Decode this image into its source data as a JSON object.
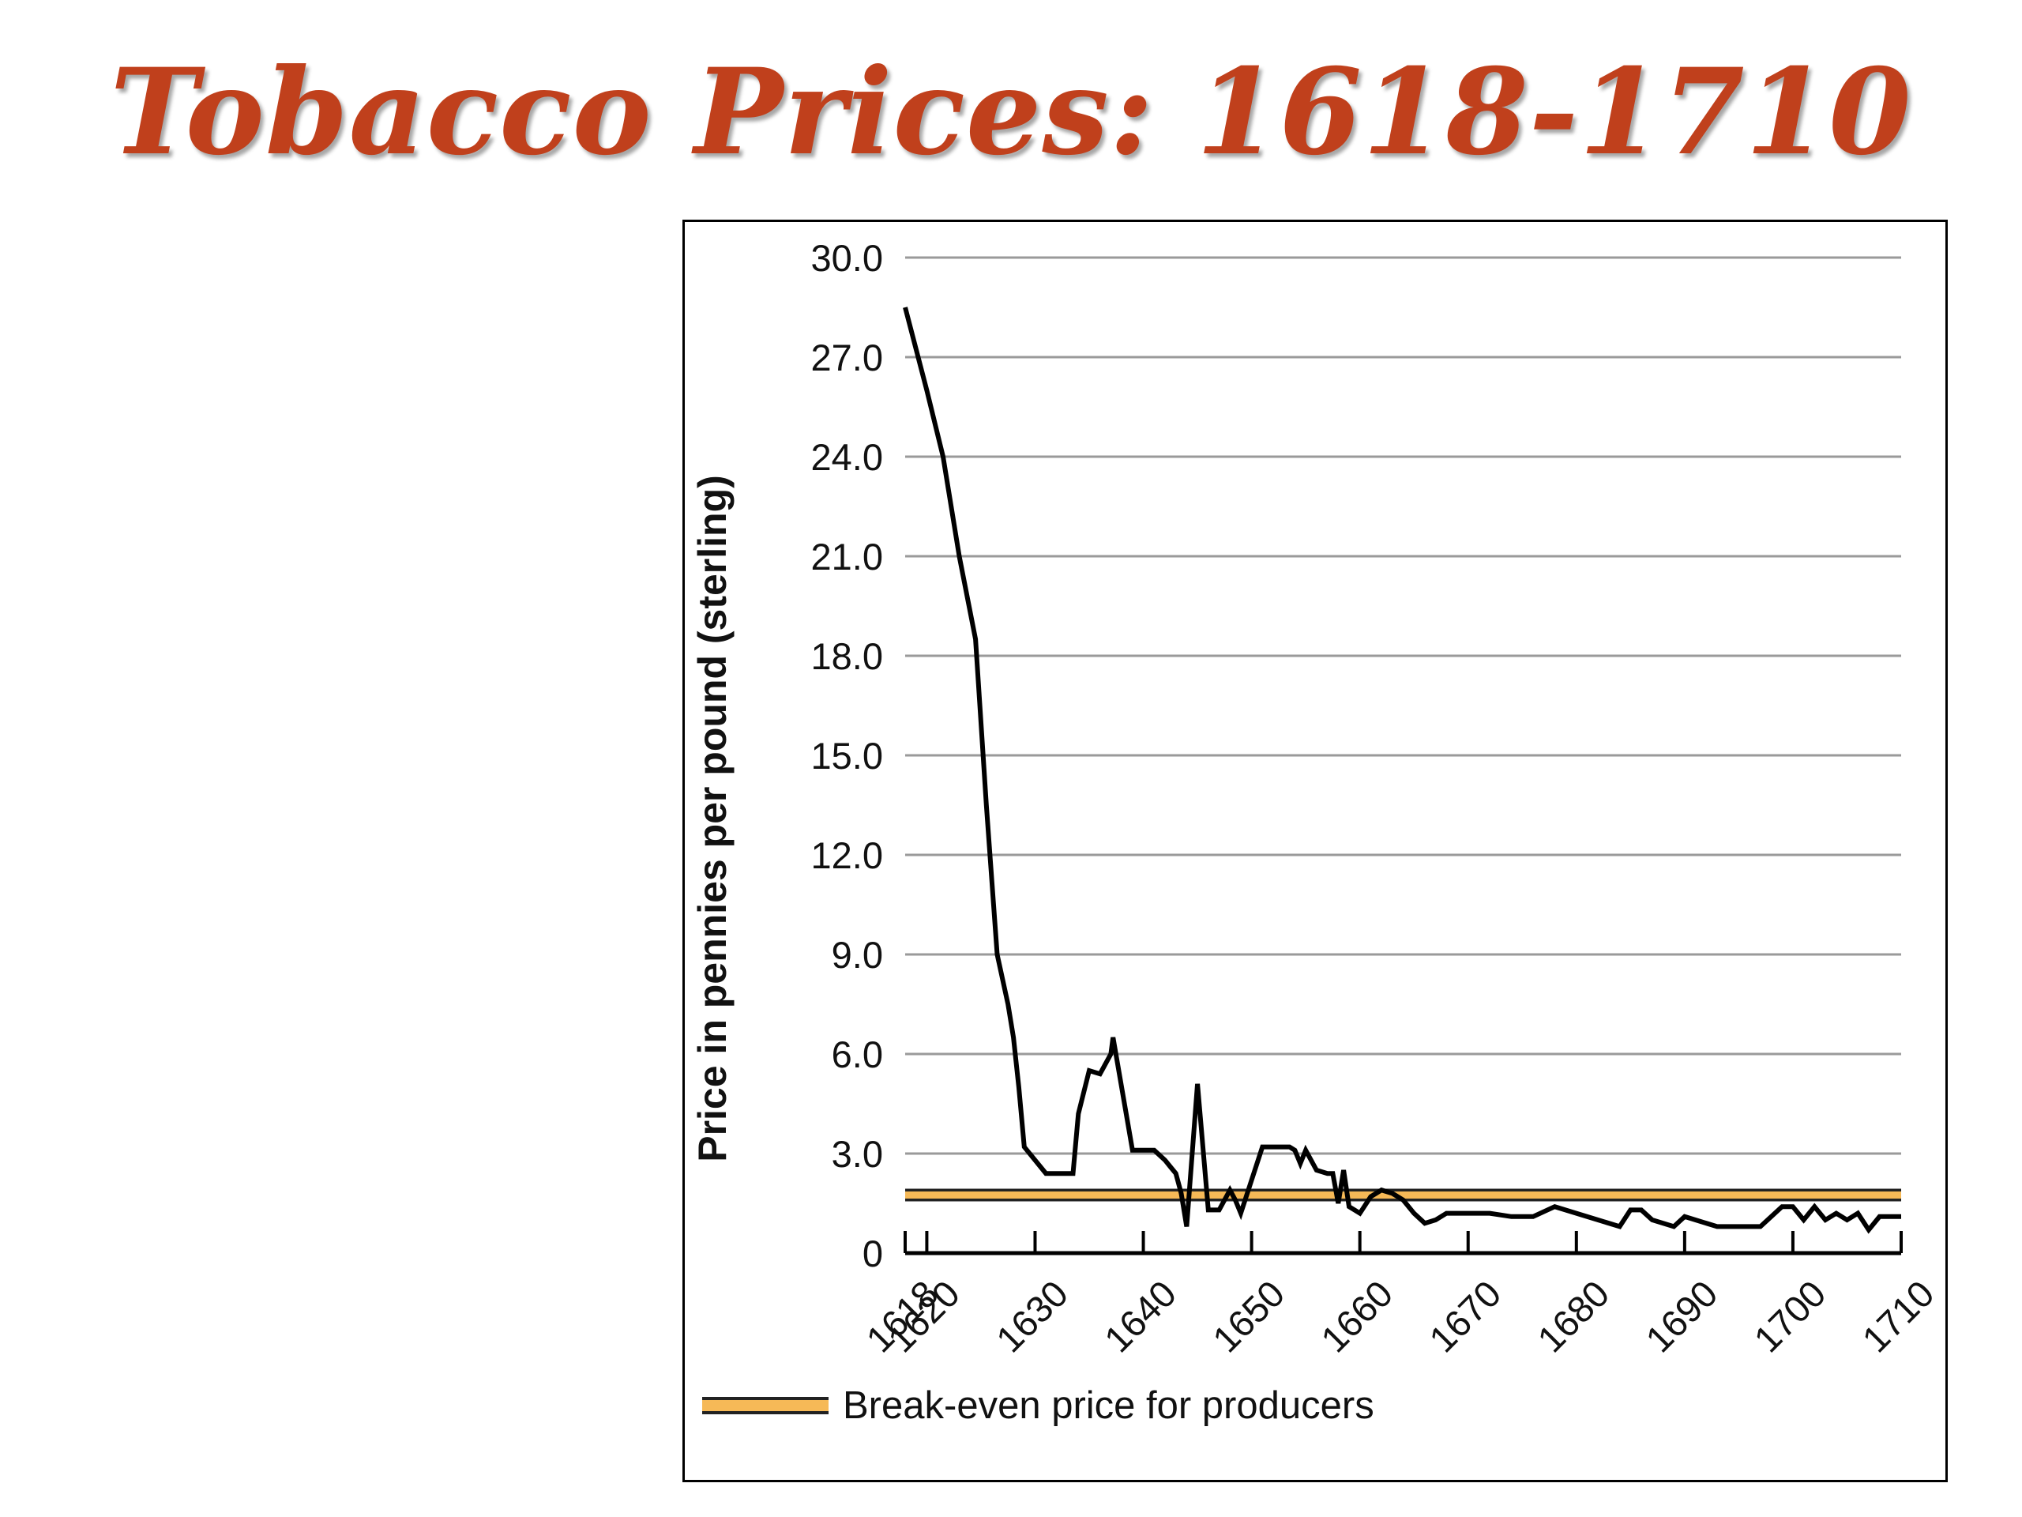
{
  "slide": {
    "title": "Tobacco Prices:  1618-1710"
  },
  "chart_data": {
    "type": "line",
    "title": "Tobacco Prices:  1618-1710",
    "ylabel": "Price in pennies per pound (sterling)",
    "xlabel": "",
    "xlim": [
      1618,
      1710
    ],
    "ylim": [
      0,
      30
    ],
    "y_ticks": [
      "0",
      "3.0",
      "6.0",
      "9.0",
      "12.0",
      "15.0",
      "18.0",
      "21.0",
      "24.0",
      "27.0",
      "30.0"
    ],
    "y_tick_values": [
      0,
      3,
      6,
      9,
      12,
      15,
      18,
      21,
      24,
      27,
      30
    ],
    "x_ticks": [
      "1618",
      "1620",
      "1630",
      "1640",
      "1650",
      "1660",
      "1670",
      "1680",
      "1690",
      "1700",
      "1710"
    ],
    "x_tick_values": [
      1618,
      1620,
      1630,
      1640,
      1650,
      1660,
      1670,
      1680,
      1690,
      1700,
      1710
    ],
    "grid": "horizontal",
    "legend_position": "bottom-left",
    "colors": {
      "series": "#000000",
      "break_even_band": "#f6b957",
      "grid": "#9a9a9a"
    },
    "series": [
      {
        "x": [
          1618,
          1620,
          1621.5,
          1623,
          1624.5,
          1625.5,
          1626.5,
          1627.5,
          1628,
          1628.5,
          1629,
          1631,
          1632,
          1632.5,
          1633.5,
          1634,
          1635,
          1636,
          1637,
          1637.2,
          1639,
          1640,
          1641,
          1642,
          1642.5,
          1643,
          1643.5,
          1644,
          1645,
          1646,
          1647,
          1648,
          1648.5,
          1649,
          1651,
          1652,
          1653,
          1653.5,
          1654,
          1654.5,
          1655,
          1656,
          1657,
          1657.5,
          1658,
          1658.5,
          1659,
          1660,
          1661,
          1662,
          1663,
          1664,
          1665,
          1666,
          1667,
          1668,
          1669,
          1670,
          1672,
          1674,
          1676,
          1678,
          1680,
          1682,
          1684,
          1685,
          1686,
          1687,
          1689,
          1690,
          1691,
          1693,
          1695,
          1697,
          1698,
          1699,
          1700,
          1701,
          1702,
          1703,
          1704,
          1705,
          1706,
          1707,
          1708,
          1710
        ],
        "values": [
          28.5,
          26,
          24,
          21,
          18.5,
          13.5,
          9,
          7.5,
          6.5,
          5,
          3.2,
          2.4,
          2.4,
          2.4,
          2.4,
          4.2,
          5.5,
          5.4,
          6,
          6.5,
          3.1,
          3.1,
          3.1,
          2.8,
          2.6,
          2.4,
          1.8,
          0.8,
          5.1,
          1.3,
          1.3,
          1.9,
          1.6,
          1.2,
          3.2,
          3.2,
          3.2,
          3.2,
          3.1,
          2.7,
          3.1,
          2.5,
          2.4,
          2.4,
          1.5,
          2.5,
          1.4,
          1.2,
          1.7,
          1.9,
          1.8,
          1.6,
          1.2,
          0.9,
          1,
          1.2,
          1.2,
          1.2,
          1.2,
          1.1,
          1.1,
          1.4,
          1.2,
          1,
          0.8,
          1.3,
          1.3,
          1,
          0.8,
          1.1,
          1,
          0.8,
          0.8,
          0.8,
          1.1,
          1.4,
          1.4,
          1,
          1.4,
          1,
          1.2,
          1,
          1.2,
          0.7,
          1.1,
          1.1
        ]
      }
    ],
    "reference_band": {
      "label": "Break-even price for producers",
      "y_low": 1.6,
      "y_high": 1.9
    }
  }
}
